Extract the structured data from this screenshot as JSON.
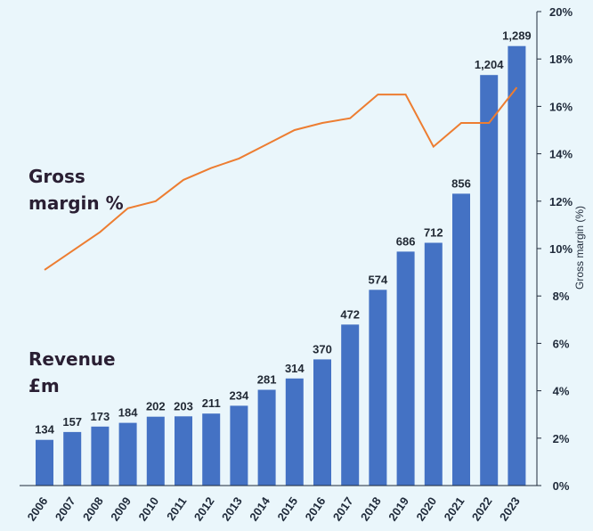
{
  "chart_data": {
    "type": "bar",
    "categories": [
      "2006",
      "2007",
      "2008",
      "2009",
      "2010",
      "2011",
      "2012",
      "2013",
      "2014",
      "2015",
      "2016",
      "2017",
      "2018",
      "2019",
      "2020",
      "2021",
      "2022",
      "2023"
    ],
    "series": [
      {
        "name": "Revenue £m",
        "type": "bar",
        "axis": "left",
        "values": [
          134,
          157,
          173,
          184,
          202,
          203,
          211,
          234,
          281,
          314,
          370,
          472,
          574,
          686,
          712,
          856,
          1204,
          1289
        ],
        "labels": [
          "134",
          "157",
          "173",
          "184",
          "202",
          "203",
          "211",
          "234",
          "281",
          "314",
          "370",
          "472",
          "574",
          "686",
          "712",
          "856",
          "1,204",
          "1,289"
        ]
      },
      {
        "name": "Gross margin %",
        "type": "line",
        "axis": "right",
        "values": [
          9.1,
          9.9,
          10.7,
          11.7,
          12.0,
          12.9,
          13.4,
          13.8,
          14.4,
          15.0,
          15.3,
          15.5,
          16.5,
          16.5,
          14.3,
          15.3,
          15.3,
          16.8
        ]
      }
    ],
    "y_right": {
      "label": "Gross margin (%)",
      "lim": [
        0,
        20
      ],
      "ticks": [
        "0%",
        "2%",
        "4%",
        "6%",
        "8%",
        "10%",
        "12%",
        "14%",
        "16%",
        "18%",
        "20%"
      ]
    },
    "y_left_lim": [
      0,
      1390
    ],
    "annotations": {
      "margin_line1": "Gross",
      "margin_line2": "margin %",
      "revenue_line1": "Revenue",
      "revenue_line2": "£m"
    },
    "colors": {
      "bar": "#4472c4",
      "line": "#ed7d31",
      "background": "#eaf6fb",
      "axis": "#1f2a3a"
    }
  }
}
